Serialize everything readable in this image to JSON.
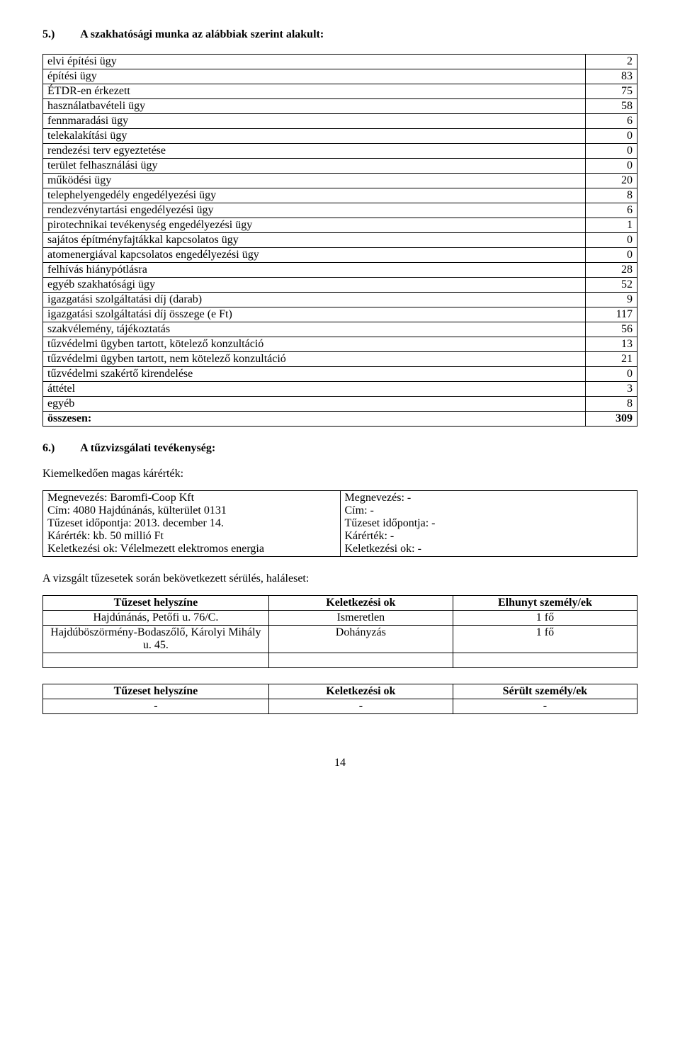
{
  "section5": {
    "number": "5.)",
    "title": "A szakhatósági munka az alábbiak szerint alakult:",
    "rows": [
      {
        "label": "elvi építési ügy",
        "value": "2"
      },
      {
        "label": "építési ügy",
        "value": "83"
      },
      {
        "label": "ÉTDR-en érkezett",
        "value": "75"
      },
      {
        "label": "használatbavételi ügy",
        "value": "58"
      },
      {
        "label": "fennmaradási ügy",
        "value": "6"
      },
      {
        "label": "telekalakítási ügy",
        "value": "0"
      },
      {
        "label": "rendezési terv egyeztetése",
        "value": "0"
      },
      {
        "label": "terület felhasználási ügy",
        "value": "0"
      },
      {
        "label": "működési ügy",
        "value": "20"
      },
      {
        "label": "telephelyengedély engedélyezési ügy",
        "value": "8"
      },
      {
        "label": "rendezvénytartási engedélyezési ügy",
        "value": "6"
      },
      {
        "label": "pirotechnikai tevékenység engedélyezési ügy",
        "value": "1"
      },
      {
        "label": "sajátos építményfajtákkal kapcsolatos ügy",
        "value": "0"
      },
      {
        "label": "atomenergiával kapcsolatos engedélyezési ügy",
        "value": "0"
      },
      {
        "label": "felhívás hiánypótlásra",
        "value": "28"
      },
      {
        "label": "egyéb szakhatósági ügy",
        "value": "52"
      },
      {
        "label": "igazgatási szolgáltatási díj (darab)",
        "value": "9"
      },
      {
        "label": "igazgatási szolgáltatási díj összege (e Ft)",
        "value": "117"
      },
      {
        "label": "szakvélemény, tájékoztatás",
        "value": "56"
      },
      {
        "label": "tűzvédelmi ügyben tartott, kötelező konzultáció",
        "value": "13"
      },
      {
        "label": "tűzvédelmi ügyben tartott, nem kötelező konzultáció",
        "value": "21"
      },
      {
        "label": "tűzvédelmi szakértő kirendelése",
        "value": "0"
      },
      {
        "label": "áttétel",
        "value": "3"
      },
      {
        "label": "egyéb",
        "value": "8"
      }
    ],
    "total_label": "összesen:",
    "total_value": "309"
  },
  "section6": {
    "number": "6.)",
    "title": "A tűzvizsgálati tevékenység:",
    "subheading": "Kiemelkedően magas kárérték:",
    "case_left": [
      "Megnevezés: Baromfi-Coop Kft",
      "Cím: 4080 Hajdúnánás, külterület 0131",
      "Tűzeset időpontja: 2013. december 14.",
      "Kárérték: kb. 50 millió Ft",
      "Keletkezési ok: Vélelmezett elektromos energia"
    ],
    "case_right": [
      "Megnevezés: -",
      "Cím: -",
      "Tűzeset időpontja: -",
      "Kárérték: -",
      "Keletkezési ok: -"
    ],
    "injury_heading": "A vizsgált tűzesetek során bekövetkezett sérülés, haláleset:",
    "death_table": {
      "headers": [
        "Tűzeset helyszíne",
        "Keletkezési ok",
        "Elhunyt személy/ek"
      ],
      "rows": [
        [
          "Hajdúnánás, Petőfi u. 76/C.",
          "Ismeretlen",
          "1 fő"
        ],
        [
          "Hajdúböszörmény-Bodaszőlő, Károlyi Mihály u. 45.",
          "Dohányzás",
          "1 fő"
        ],
        [
          "",
          "",
          ""
        ]
      ]
    },
    "injury_table": {
      "headers": [
        "Tűzeset helyszíne",
        "Keletkezési ok",
        "Sérült személy/ek"
      ],
      "rows": [
        [
          "-",
          "-",
          "-"
        ]
      ]
    }
  },
  "page_number": "14"
}
